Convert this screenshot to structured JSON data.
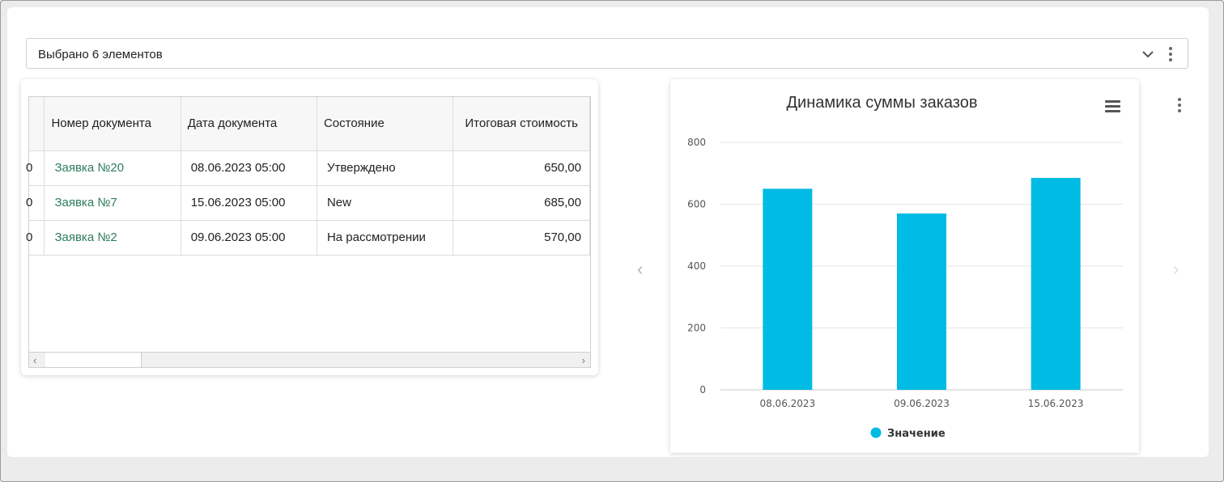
{
  "select": {
    "text": "Выбрано 6 элементов"
  },
  "table": {
    "headers": [
      "",
      "Номер документа",
      "Дата документа",
      "Состояние",
      "Итоговая стоимость"
    ],
    "rows": [
      {
        "c0": "0",
        "number": "Заявка №20",
        "date": "08.06.2023 05:00",
        "status": "Утверждено",
        "total": "650,00"
      },
      {
        "c0": "0",
        "number": "Заявка №7",
        "date": "15.06.2023 05:00",
        "status": "New",
        "total": "685,00"
      },
      {
        "c0": "0",
        "number": "Заявка №2",
        "date": "09.06.2023 05:00",
        "status": "На рассмотрении",
        "total": "570,00"
      }
    ]
  },
  "carousel": {
    "prev_icon": "chevron-left-icon",
    "next_icon": "chevron-right-icon"
  },
  "colors": {
    "bar": "#00bbe4",
    "link": "#2e7d5b"
  },
  "chart_data": {
    "type": "bar",
    "title": "Динамика суммы заказов",
    "categories": [
      "08.06.2023",
      "09.06.2023",
      "15.06.2023"
    ],
    "series": [
      {
        "name": "Значение",
        "values": [
          650,
          570,
          685
        ]
      }
    ],
    "ylim": [
      0,
      800
    ],
    "yticks": [
      0,
      200,
      400,
      600,
      800
    ],
    "grid": true,
    "legend": "bottom-center"
  }
}
